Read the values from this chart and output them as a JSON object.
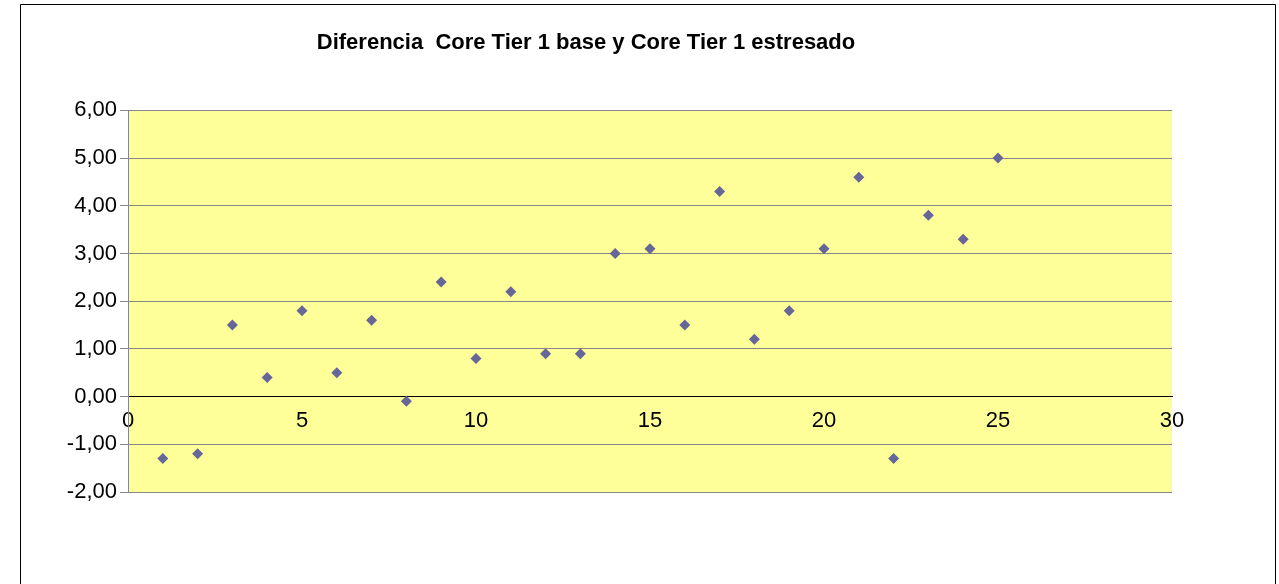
{
  "chart_data": {
    "type": "scatter",
    "title": "Diferencia  Core Tier 1 base y Core Tier 1 estresado",
    "x": [
      1,
      2,
      3,
      4,
      5,
      6,
      7,
      8,
      9,
      10,
      11,
      12,
      13,
      14,
      15,
      16,
      17,
      18,
      19,
      20,
      21,
      22,
      23,
      24,
      25
    ],
    "series": [
      {
        "color": "#666699",
        "values": [
          -1.3,
          -1.2,
          1.5,
          0.4,
          1.8,
          0.5,
          1.6,
          -0.1,
          2.4,
          0.8,
          2.2,
          0.9,
          0.9,
          3.0,
          3.1,
          1.5,
          4.3,
          1.2,
          1.8,
          3.1,
          4.6,
          -1.3,
          3.8,
          3.3,
          5.0
        ]
      }
    ],
    "xlim": [
      0,
      30
    ],
    "xticks": [
      0,
      5,
      10,
      15,
      20,
      25,
      30
    ],
    "ylim": [
      -2,
      6
    ],
    "yticks": [
      {
        "value": -2,
        "label": "-2,00"
      },
      {
        "value": -1,
        "label": "-1,00"
      },
      {
        "value": 0,
        "label": "0,00"
      },
      {
        "value": 1,
        "label": "1,00"
      },
      {
        "value": 2,
        "label": "2,00"
      },
      {
        "value": 3,
        "label": "3,00"
      },
      {
        "value": 4,
        "label": "4,00"
      },
      {
        "value": 5,
        "label": "5,00"
      },
      {
        "value": 6,
        "label": "6,00"
      }
    ],
    "grid": "y",
    "legend": false,
    "marker": "diamond"
  }
}
